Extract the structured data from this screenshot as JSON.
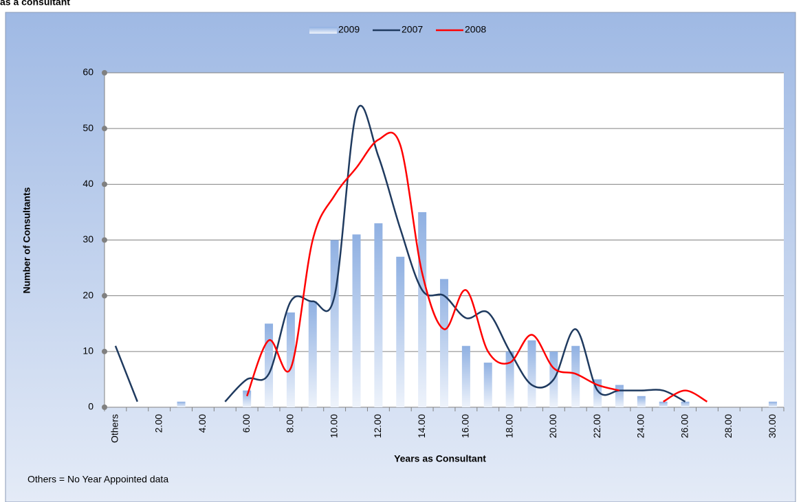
{
  "chart_data": {
    "type": "bar-line",
    "title": "as a consultant",
    "x_label": "Years as Consultant",
    "y_label": "Number of Consultants",
    "footnote": "Others = No Year Appointed data",
    "categories": [
      "Others",
      null,
      "2.00",
      null,
      "4.00",
      null,
      "6.00",
      null,
      "8.00",
      null,
      "10.00",
      null,
      "12.00",
      null,
      "14.00",
      null,
      "16.00",
      null,
      "18.00",
      null,
      "20.00",
      null,
      "22.00",
      null,
      "24.00",
      null,
      "26.00",
      null,
      "28.00",
      null,
      "30.00"
    ],
    "series": [
      {
        "name": "2009",
        "type": "bar",
        "color": "#8fb0e2",
        "values": [
          0,
          0,
          0,
          1,
          0,
          0,
          3,
          15,
          17,
          19,
          30,
          31,
          33,
          27,
          35,
          23,
          11,
          8,
          10,
          12,
          10,
          11,
          5,
          4,
          2,
          1,
          1,
          0,
          0,
          0,
          1
        ]
      },
      {
        "name": "2007",
        "type": "line",
        "color": "#1f3a5f",
        "values": [
          11,
          1,
          null,
          null,
          null,
          1,
          5,
          6,
          19,
          19,
          20,
          53,
          45,
          32,
          21,
          20,
          16,
          17,
          10,
          4,
          5,
          14,
          3,
          3,
          3,
          3,
          1,
          null,
          null,
          null,
          null
        ]
      },
      {
        "name": "2008",
        "type": "line",
        "color": "#ff0000",
        "values": [
          null,
          null,
          null,
          null,
          null,
          null,
          2,
          12,
          7,
          30,
          38,
          43,
          48,
          47,
          24,
          14,
          21,
          10,
          8,
          13,
          7,
          6,
          4,
          3,
          null,
          1,
          3,
          1,
          null,
          null,
          null
        ]
      }
    ],
    "ylim": [
      0,
      60
    ],
    "yticks": [
      0,
      10,
      20,
      30,
      40,
      50,
      60
    ],
    "grid": true,
    "legend": "top"
  }
}
